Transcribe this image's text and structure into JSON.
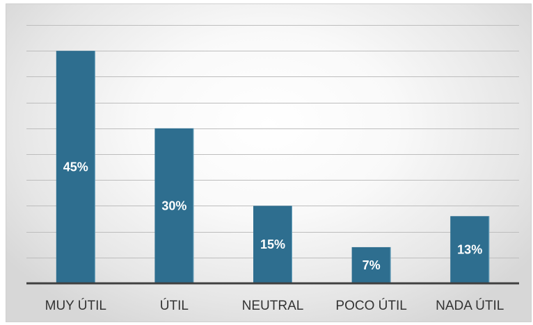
{
  "chart_data": {
    "type": "bar",
    "categories": [
      "MUY ÚTIL",
      "ÚTIL",
      "NEUTRAL",
      "POCO ÚTIL",
      "NADA ÚTIL"
    ],
    "values": [
      45,
      30,
      15,
      7,
      13
    ],
    "data_labels": [
      "45%",
      "30%",
      "15%",
      "7%",
      "13%"
    ],
    "title": "",
    "xlabel": "",
    "ylabel": "",
    "ylim": [
      0,
      50
    ],
    "grid": true,
    "legend": "none",
    "bar_color": "#2e6e8f"
  }
}
